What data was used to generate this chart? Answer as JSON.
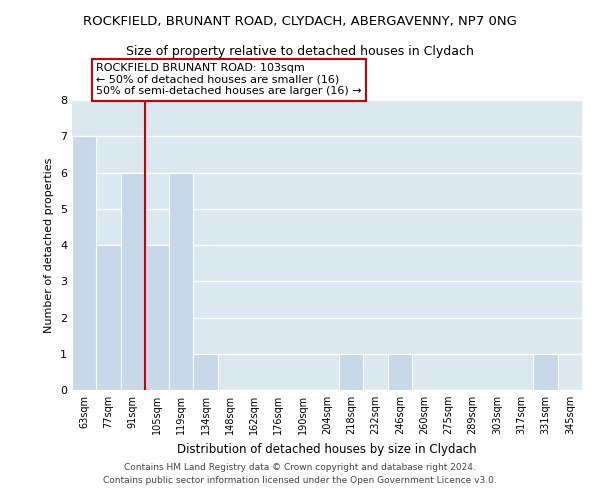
{
  "title": "ROCKFIELD, BRUNANT ROAD, CLYDACH, ABERGAVENNY, NP7 0NG",
  "subtitle": "Size of property relative to detached houses in Clydach",
  "xlabel": "Distribution of detached houses by size in Clydach",
  "ylabel": "Number of detached properties",
  "bin_labels": [
    "63sqm",
    "77sqm",
    "91sqm",
    "105sqm",
    "119sqm",
    "134sqm",
    "148sqm",
    "162sqm",
    "176sqm",
    "190sqm",
    "204sqm",
    "218sqm",
    "232sqm",
    "246sqm",
    "260sqm",
    "275sqm",
    "289sqm",
    "303sqm",
    "317sqm",
    "331sqm",
    "345sqm"
  ],
  "bar_heights": [
    7,
    4,
    6,
    4,
    6,
    1,
    0,
    0,
    0,
    0,
    0,
    1,
    0,
    1,
    0,
    0,
    0,
    0,
    0,
    1,
    0
  ],
  "bar_color": "#c8d8e8",
  "bar_edge_color": "white",
  "vline_x": 2.5,
  "vline_color": "#cc0000",
  "annotation_line1": "ROCKFIELD BRUNANT ROAD: 103sqm",
  "annotation_line2": "← 50% of detached houses are smaller (16)",
  "annotation_line3": "50% of semi-detached houses are larger (16) →",
  "ylim": [
    0,
    8
  ],
  "yticks": [
    0,
    1,
    2,
    3,
    4,
    5,
    6,
    7,
    8
  ],
  "grid_color": "#ffffff",
  "bg_color": "#dce8f0",
  "title_fontsize": 9.5,
  "subtitle_fontsize": 9,
  "footer_line1": "Contains HM Land Registry data © Crown copyright and database right 2024.",
  "footer_line2": "Contains public sector information licensed under the Open Government Licence v3.0."
}
